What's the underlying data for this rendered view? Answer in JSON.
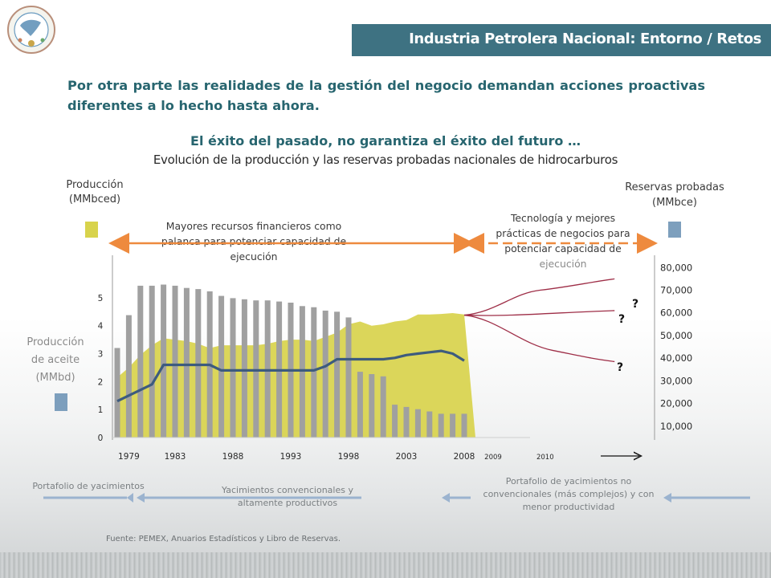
{
  "header": {
    "title": "Industria Petrolera Nacional: Entorno / Retos"
  },
  "intro": {
    "text": "Por otra parte las realidades de la gestión del negocio demandan acciones proactivas diferentes a lo hecho hasta ahora."
  },
  "tagline": "El éxito del pasado, no garantiza el éxito del futuro …",
  "labels": {
    "production": "Producción (MMbced)",
    "reserves": "Reservas probadas (MMbce)",
    "financial": "Mayores recursos financieros como palanca para potenciar capacidad de ejecución",
    "technology_main": "Tecnología y mejores prácticas de negocios para potenciar capacidad de",
    "technology_last": "ejecución",
    "oil_production": "Producción de aceite (MMbd)"
  },
  "bottom": {
    "portfolio_left": "Portafolio de yacimientos",
    "conventional": "Yacimientos convencionales y altamente productivos",
    "unconventional": "Portafolio de yacimientos no convencionales (más complejos) y con menor productividad"
  },
  "source": "Fuente: PEMEX, Anuarios Estadísticos y Libro de Reservas.",
  "colors": {
    "header_bg": "#3e7282",
    "text_teal": "#27656f",
    "production_area": "#d8d34c",
    "reserves_bar": "#a0a0a0",
    "oil_line": "#3d5b7e",
    "scenario_lines": "#9e2e47",
    "arrow": "#ee8a3e",
    "portfolio_arrow": "#9bb3cf"
  },
  "chart_data": {
    "type": "bar",
    "title": "Evolución de la producción y las reservas probadas nacionales de hidrocarburos",
    "x": [
      1978,
      1979,
      1980,
      1981,
      1982,
      1983,
      1984,
      1985,
      1986,
      1987,
      1988,
      1989,
      1990,
      1991,
      1992,
      1993,
      1994,
      1995,
      1996,
      1997,
      1998,
      1999,
      2000,
      2001,
      2002,
      2003,
      2004,
      2005,
      2006,
      2007,
      2008
    ],
    "x_tick_labels": [
      "1979",
      "1983",
      "1988",
      "1993",
      "1998",
      "2003",
      "2008"
    ],
    "x_tick_positions": [
      1979,
      1983,
      1988,
      1993,
      1998,
      2003,
      2008
    ],
    "x_future_labels": [
      "2009",
      "2010"
    ],
    "x_future_positions": [
      2010.5,
      2015
    ],
    "y_left_ticks": [
      "0",
      "1",
      "2",
      "3",
      "4",
      "5"
    ],
    "ylim_left": [
      0,
      5.6
    ],
    "y_right_ticks": [
      "10,000",
      "20,000",
      "30,000",
      "40,000",
      "50,000",
      "60,000",
      "70,000",
      "80,000"
    ],
    "ylim_right": [
      5000,
      84000
    ],
    "series": [
      {
        "name": "Reservas probadas (MMbce)",
        "type": "bar",
        "axis": "right",
        "values": [
          44500,
          59000,
          72000,
          72000,
          72500,
          72000,
          71000,
          70500,
          69500,
          67500,
          66500,
          66000,
          65500,
          65500,
          65000,
          64500,
          63000,
          62500,
          61000,
          60500,
          58000,
          34000,
          33000,
          32000,
          19500,
          18500,
          17500,
          16500,
          15500,
          15500,
          15500
        ]
      },
      {
        "name": "Producción (MMbced)",
        "type": "area",
        "axis": "left",
        "values": [
          2.15,
          2.5,
          2.95,
          3.3,
          3.55,
          3.5,
          3.45,
          3.35,
          3.2,
          3.3,
          3.3,
          3.3,
          3.3,
          3.35,
          3.45,
          3.5,
          3.5,
          3.45,
          3.6,
          3.75,
          4.05,
          4.15,
          4.0,
          4.05,
          4.15,
          4.2,
          4.4,
          4.4,
          4.42,
          4.45,
          4.4
        ]
      },
      {
        "name": "Producción de aceite (MMbd)",
        "type": "line",
        "axis": "left",
        "x": [
          1978,
          1981,
          1982,
          1983,
          1984,
          1985,
          1986,
          1987,
          1988,
          1989,
          1990,
          1991,
          1992,
          1993,
          1994,
          1995,
          1996,
          1997,
          1998,
          1999,
          2000,
          2001,
          2002,
          2003,
          2004,
          2005,
          2006,
          2007,
          2008
        ],
        "values": [
          1.3,
          1.9,
          2.6,
          2.6,
          2.6,
          2.6,
          2.6,
          2.4,
          2.4,
          2.4,
          2.4,
          2.4,
          2.4,
          2.4,
          2.4,
          2.4,
          2.55,
          2.8,
          2.8,
          2.8,
          2.8,
          2.8,
          2.85,
          2.95,
          3.0,
          3.05,
          3.1,
          3.0,
          2.75
        ]
      }
    ],
    "scenarios": {
      "axis": "right",
      "origin": {
        "x": 2008,
        "y": 59000
      },
      "upper": {
        "x": 2021,
        "y": 75000
      },
      "middle": {
        "x": 2021,
        "y": 61000
      },
      "lower": {
        "x": 2021,
        "y": 38500
      },
      "labels": [
        "?",
        "?",
        "?"
      ]
    }
  }
}
